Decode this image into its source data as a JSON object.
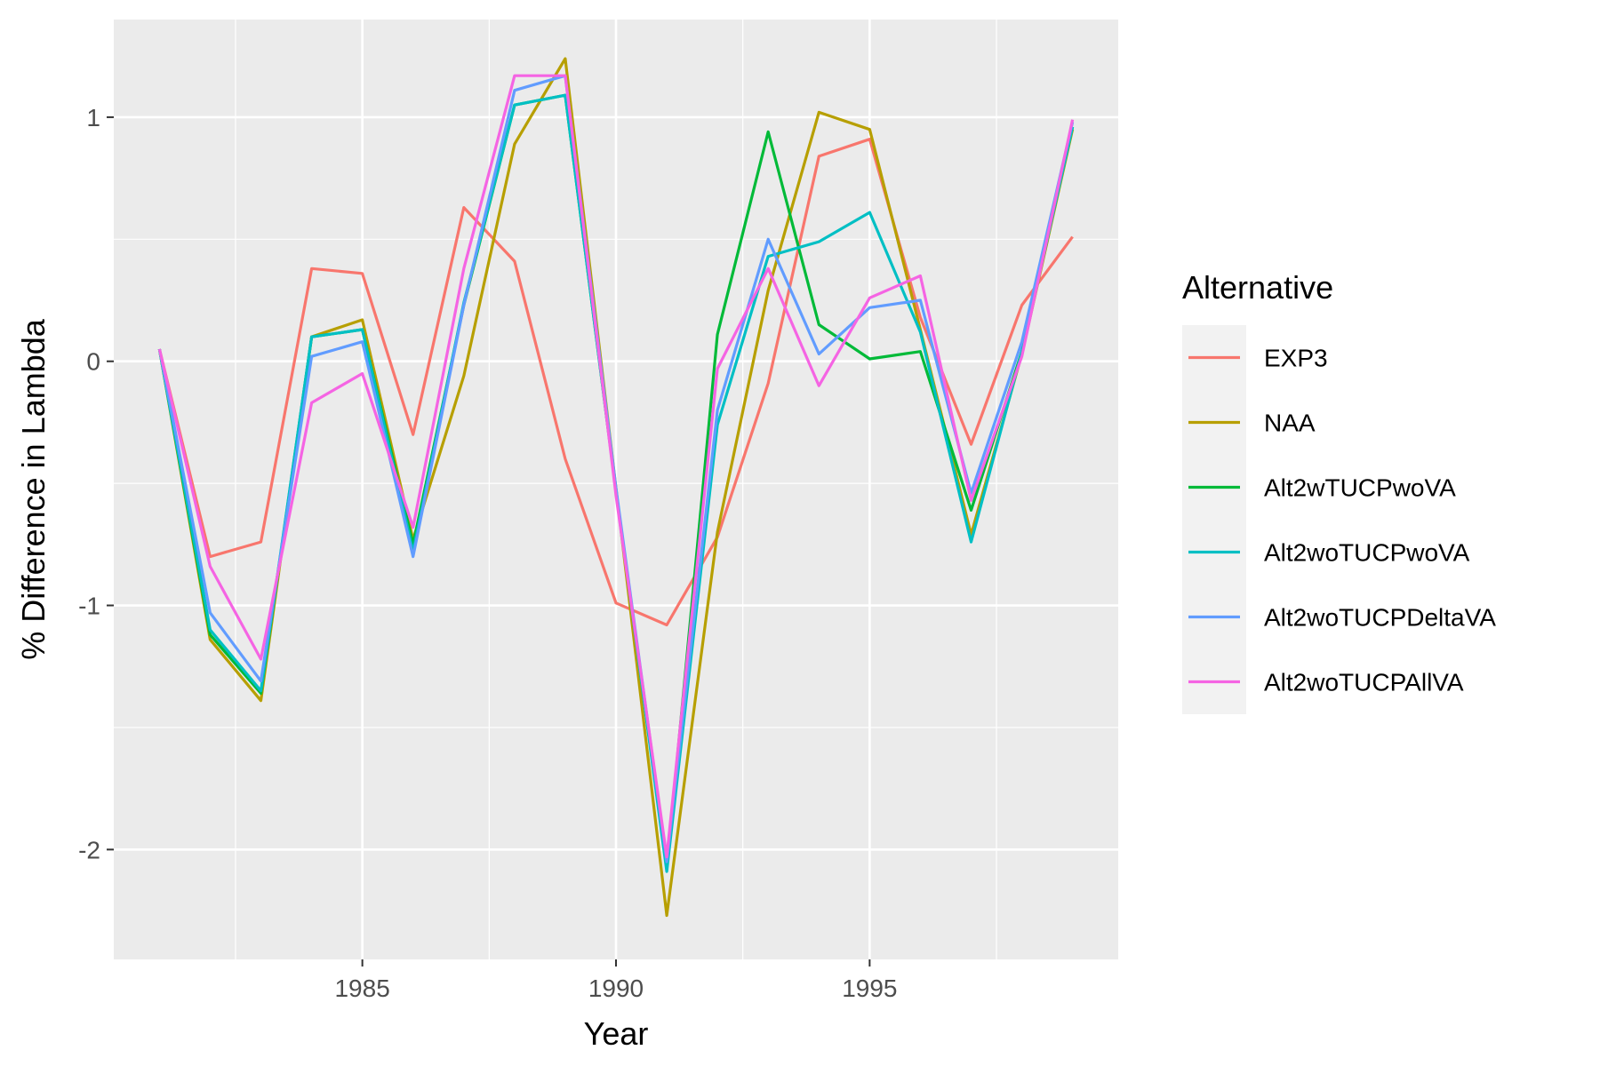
{
  "chart_data": {
    "type": "line",
    "xlabel": "Year",
    "ylabel": "% Difference in Lambda",
    "xlim": [
      1980.1,
      1999.9
    ],
    "ylim": [
      -2.45,
      1.4
    ],
    "xticks": [
      1985,
      1990,
      1995
    ],
    "yticks": [
      -2,
      -1,
      0,
      1
    ],
    "grid": true,
    "legend": {
      "title": "Alternative",
      "position": "right"
    },
    "x": [
      1981,
      1982,
      1983,
      1984,
      1985,
      1986,
      1987,
      1988,
      1989,
      1990,
      1991,
      1992,
      1993,
      1994,
      1995,
      1996,
      1997,
      1998,
      1999
    ],
    "series": [
      {
        "name": "EXP3",
        "color": "#F8766D",
        "values": [
          0.05,
          -0.8,
          -0.74,
          0.38,
          0.36,
          -0.3,
          0.63,
          0.41,
          -0.4,
          -0.99,
          -1.08,
          -0.72,
          -0.09,
          0.84,
          0.91,
          0.18,
          -0.34,
          0.23,
          0.51
        ]
      },
      {
        "name": "NAA",
        "color": "#B79F00",
        "values": [
          0.05,
          -1.14,
          -1.39,
          0.1,
          0.17,
          -0.73,
          -0.06,
          0.89,
          1.24,
          -0.52,
          -2.27,
          -0.7,
          0.29,
          1.02,
          0.95,
          0.13,
          -0.71,
          0.03,
          0.95
        ]
      },
      {
        "name": "Alt2wTUCPwoVA",
        "color": "#00BA38",
        "values": [
          0.05,
          -1.12,
          -1.36,
          0.1,
          0.13,
          -0.75,
          0.23,
          1.05,
          1.09,
          -0.53,
          -2.08,
          0.11,
          0.94,
          0.15,
          0.01,
          0.04,
          -0.61,
          0.04,
          0.96
        ]
      },
      {
        "name": "Alt2woTUCPwoVA",
        "color": "#00BFC4",
        "values": [
          0.05,
          -1.1,
          -1.35,
          0.1,
          0.13,
          -0.78,
          0.24,
          1.05,
          1.09,
          -0.53,
          -2.09,
          -0.26,
          0.43,
          0.49,
          0.61,
          0.12,
          -0.74,
          0.04,
          0.96
        ]
      },
      {
        "name": "Alt2woTUCPDeltaVA",
        "color": "#619CFF",
        "values": [
          0.05,
          -1.03,
          -1.31,
          0.02,
          0.08,
          -0.8,
          0.23,
          1.11,
          1.17,
          -0.52,
          -2.05,
          -0.2,
          0.5,
          0.03,
          0.22,
          0.25,
          -0.54,
          0.08,
          0.98
        ]
      },
      {
        "name": "Alt2woTUCPAllVA",
        "color": "#F564E3",
        "values": [
          0.05,
          -0.84,
          -1.22,
          -0.17,
          -0.05,
          -0.68,
          0.38,
          1.17,
          1.17,
          -0.55,
          -2.03,
          -0.03,
          0.38,
          -0.1,
          0.26,
          0.35,
          -0.57,
          0.02,
          0.99
        ]
      }
    ]
  }
}
